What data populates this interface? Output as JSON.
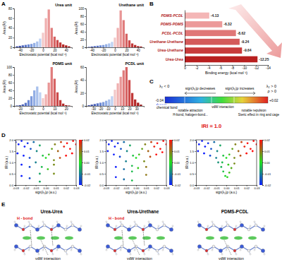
{
  "panel_labels": [
    "A",
    "B",
    "C",
    "D",
    "E"
  ],
  "chart_data": [
    {
      "type": "bar",
      "title": "Urea unit",
      "x_label": "Electrostatic potential (kcal mol⁻¹)",
      "y_label": "Area (Å²)",
      "x": [
        -45,
        -40,
        -35,
        -30,
        -25,
        -20,
        -15,
        -10,
        -5,
        0,
        5,
        10,
        15,
        20,
        25,
        30,
        35,
        40,
        45
      ],
      "values": [
        2,
        3,
        4,
        5,
        6,
        7,
        9,
        12,
        18,
        30,
        60,
        78,
        40,
        22,
        15,
        10,
        6,
        4,
        2
      ],
      "colors": [
        "#2f3f9e",
        "#3c50ad",
        "#4a62bb",
        "#5a75c8",
        "#6b88d3",
        "#7e9bdc",
        "#92aee5",
        "#a8c0ec",
        "#bfd2f3",
        "#f3c9c9",
        "#f0b0b0",
        "#e99696",
        "#e07c7c",
        "#d66363",
        "#cc4b4b",
        "#c13838",
        "#b52828",
        "#a71c1c",
        "#981212"
      ],
      "xlim": [
        -50,
        50
      ],
      "xticks": [
        -40,
        -20,
        0,
        20,
        40
      ],
      "ylim": [
        0,
        80
      ],
      "yticks": [
        0,
        20,
        40,
        60,
        80
      ]
    },
    {
      "type": "bar",
      "title": "Urethane unit",
      "x_label": "Electrostatic potential (kcal mol⁻¹)",
      "y_label": "Area (Å²)",
      "x": [
        -45,
        -40,
        -35,
        -30,
        -25,
        -20,
        -15,
        -10,
        -5,
        0,
        5,
        10,
        15,
        20,
        25,
        30,
        35,
        40,
        45
      ],
      "values": [
        1,
        2,
        3,
        4,
        5,
        6,
        8,
        10,
        14,
        25,
        50,
        95,
        70,
        35,
        18,
        10,
        6,
        3,
        2
      ],
      "colors": [
        "#2f3f9e",
        "#3c50ad",
        "#4a62bb",
        "#5a75c8",
        "#6b88d3",
        "#7e9bdc",
        "#92aee5",
        "#a8c0ec",
        "#bfd2f3",
        "#f3c9c9",
        "#f0b0b0",
        "#e99696",
        "#e07c7c",
        "#d66363",
        "#cc4b4b",
        "#c13838",
        "#b52828",
        "#a71c1c",
        "#981212"
      ],
      "xlim": [
        -50,
        50
      ],
      "xticks": [
        -40,
        -20,
        0,
        20,
        40
      ],
      "ylim": [
        0,
        100
      ],
      "yticks": [
        0,
        20,
        40,
        60,
        80,
        100
      ]
    },
    {
      "type": "bar",
      "title": "PDMS unit",
      "x_label": "Electrostatic potential (kcal mol⁻¹)",
      "y_label": "Area (Å²)",
      "x": [
        -22.5,
        -20,
        -17.5,
        -15,
        -12.5,
        -10,
        -7.5,
        -5,
        -2.5,
        0,
        2.5,
        5,
        7.5,
        10,
        12.5,
        15,
        17.5,
        20,
        22.5
      ],
      "values": [
        1,
        2,
        4,
        8,
        15,
        25,
        40,
        50,
        35,
        20,
        30,
        60,
        100,
        70,
        35,
        15,
        6,
        2,
        1
      ],
      "colors": [
        "#2f3f9e",
        "#3c50ad",
        "#4a62bb",
        "#5a75c8",
        "#6b88d3",
        "#7e9bdc",
        "#92aee5",
        "#a8c0ec",
        "#bfd2f3",
        "#f3c9c9",
        "#f0b0b0",
        "#e99696",
        "#e07c7c",
        "#d66363",
        "#cc4b4b",
        "#c13838",
        "#b52828",
        "#a71c1c",
        "#981212"
      ],
      "xlim": [
        -25,
        25
      ],
      "xticks": [
        -20,
        -10,
        0,
        10,
        20
      ],
      "ylim": [
        0,
        100
      ],
      "yticks": [
        0,
        20,
        40,
        60,
        80,
        100
      ]
    },
    {
      "type": "bar",
      "title": "PCDL unit",
      "x_label": "Electrostatic potential (kcal mol⁻¹)",
      "y_label": "Area (Å²)",
      "x": [
        -36,
        -32,
        -28,
        -24,
        -20,
        -16,
        -12,
        -8,
        -4,
        0,
        4,
        8,
        12,
        16,
        20,
        24,
        28,
        32,
        36
      ],
      "values": [
        1,
        2,
        3,
        4,
        5,
        6,
        8,
        10,
        15,
        25,
        35,
        45,
        55,
        60,
        40,
        20,
        10,
        5,
        2
      ],
      "colors": [
        "#2f3f9e",
        "#3c50ad",
        "#4a62bb",
        "#5a75c8",
        "#6b88d3",
        "#7e9bdc",
        "#92aee5",
        "#a8c0ec",
        "#bfd2f3",
        "#f3c9c9",
        "#f0b0b0",
        "#e99696",
        "#e07c7c",
        "#d66363",
        "#cc4b4b",
        "#c13838",
        "#b52828",
        "#a71c1c",
        "#981212"
      ],
      "xlim": [
        -40,
        40
      ],
      "xticks": [
        -30,
        -20,
        -10,
        0,
        10,
        20,
        30
      ],
      "ylim": [
        0,
        60
      ],
      "yticks": [
        0,
        20,
        40,
        60
      ]
    },
    {
      "type": "bar",
      "orientation": "horizontal",
      "x_label": "Binding energy (kcal mol⁻¹)",
      "categories": [
        "PDMS-PCDL",
        "PDMS-PDMS",
        "PCDL-PCDL",
        "Urethane-Urethane",
        "Urea-Urethane",
        "Urea-Urea"
      ],
      "values": [
        -4.13,
        -6.32,
        -8.62,
        -9.24,
        -9.64,
        -12.25
      ],
      "colors": [
        "#f4b6b6",
        "#ec9a9a",
        "#e07777",
        "#d45a5a",
        "#c83b3b",
        "#b81f1f"
      ],
      "xlim": [
        0,
        -14
      ],
      "xticks": [
        0,
        -2,
        -4,
        -6,
        -8,
        -10,
        -12,
        -14
      ],
      "data_labels": true
    },
    {
      "type": "scatter",
      "x_label": "sign(λ₂)ρ (a.u.)",
      "y_label": "IRI (a.u.)",
      "x": [
        -0.03,
        -0.027,
        -0.024,
        -0.021,
        -0.018,
        -0.015,
        -0.012,
        -0.009,
        -0.006,
        -0.003,
        0,
        0.003,
        0.006,
        0.009,
        0.012,
        0.015,
        0.018,
        0.021,
        0.024,
        0.027,
        0.03,
        -0.028,
        -0.022,
        -0.016,
        -0.01,
        -0.004,
        0.002,
        0.008,
        0.014,
        0.02,
        0.026,
        -0.024,
        -0.024,
        -0.016,
        -0.016,
        -0.006,
        -0.006,
        0.008,
        0.008
      ],
      "values": [
        1.9,
        1.8,
        1.95,
        1.7,
        1.85,
        1.6,
        1.9,
        1.5,
        1.75,
        1.3,
        1.2,
        1.35,
        1.6,
        1.8,
        1.5,
        1.9,
        1.7,
        1.85,
        1.6,
        1.95,
        1.8,
        1.4,
        1.3,
        1.2,
        1.0,
        0.8,
        0.7,
        1.1,
        1.2,
        1.3,
        1.4,
        0.9,
        0.4,
        0.8,
        0.3,
        0.5,
        0.15,
        0.9,
        0.5
      ],
      "xlim": [
        -0.03,
        0.03
      ],
      "xticks": [
        -0.03,
        -0.02,
        -0.01,
        {
          "value": 0,
          "label": "0.00"
        },
        0.01,
        0.02,
        0.03
      ],
      "ylim": [
        0,
        2
      ],
      "yticks": [
        {
          "value": 0,
          "label": "0.0"
        },
        0.5,
        {
          "value": 1,
          "label": "1.0"
        },
        1.5,
        {
          "value": 2,
          "label": "2.0"
        }
      ],
      "colorbar": {
        "range": [
          -0.02,
          0.02
        ],
        "ticks": [
          0.02,
          0.01,
          {
            "value": 0,
            "label": "0.00"
          },
          -0.01,
          -0.02
        ]
      }
    },
    {
      "type": "scatter",
      "x_label": "sign(λ₂)ρ (a.u.)",
      "y_label": "IRI (a.u.)",
      "x": [
        -0.03,
        -0.027,
        -0.024,
        -0.021,
        -0.018,
        -0.015,
        -0.012,
        -0.009,
        -0.006,
        -0.003,
        0,
        0.003,
        0.006,
        0.009,
        0.012,
        0.015,
        0.018,
        0.021,
        0.024,
        0.027,
        0.03,
        -0.028,
        -0.022,
        -0.016,
        -0.01,
        -0.004,
        0.002,
        0.008,
        0.014,
        0.02,
        0.026,
        -0.02,
        -0.02,
        -0.012,
        -0.012,
        -0.004,
        -0.004,
        0.01,
        0.01
      ],
      "values": [
        1.9,
        1.8,
        1.95,
        1.7,
        1.85,
        1.6,
        1.9,
        1.5,
        1.75,
        1.3,
        1.2,
        1.35,
        1.6,
        1.8,
        1.5,
        1.9,
        1.7,
        1.85,
        1.6,
        1.95,
        1.8,
        1.5,
        1.35,
        1.25,
        1.05,
        0.85,
        0.75,
        1.05,
        1.25,
        1.35,
        1.45,
        0.8,
        0.35,
        0.7,
        0.25,
        0.6,
        0.2,
        0.8,
        0.45
      ],
      "xlim": [
        -0.03,
        0.03
      ],
      "xticks": [
        -0.03,
        -0.02,
        -0.01,
        {
          "value": 0,
          "label": "0.00"
        },
        0.01,
        0.02,
        0.03
      ],
      "ylim": [
        0,
        2
      ],
      "yticks": [
        {
          "value": 0,
          "label": "0.0"
        },
        0.5,
        {
          "value": 1,
          "label": "1.0"
        },
        1.5,
        {
          "value": 2,
          "label": "2.0"
        }
      ],
      "colorbar": {
        "range": [
          -0.02,
          0.02
        ],
        "ticks": [
          0.02,
          0.01,
          {
            "value": 0,
            "label": "0.00"
          },
          -0.01,
          -0.02
        ]
      }
    },
    {
      "type": "scatter",
      "x_label": "sign(λ₂)ρ (a.u.)",
      "y_label": "IRI (a.u.)",
      "x": [
        -0.03,
        -0.027,
        -0.024,
        -0.021,
        -0.018,
        -0.015,
        -0.012,
        -0.009,
        -0.006,
        -0.003,
        0,
        0.003,
        0.006,
        0.009,
        0.012,
        0.015,
        0.018,
        0.021,
        0.024,
        0.027,
        0.03,
        -0.028,
        -0.022,
        -0.016,
        -0.01,
        -0.004,
        0.002,
        0.008,
        0.014,
        0.02,
        0.026,
        -0.008,
        -0.005,
        -0.003,
        -0.001,
        0.001,
        0.003,
        0.005,
        0.008
      ],
      "values": [
        1.9,
        1.8,
        1.95,
        1.7,
        1.85,
        1.6,
        1.9,
        1.5,
        1.75,
        1.3,
        1.2,
        1.35,
        1.6,
        1.8,
        1.5,
        1.9,
        1.7,
        1.85,
        1.6,
        1.95,
        1.8,
        1.5,
        1.4,
        1.3,
        1.2,
        1.0,
        0.9,
        1.2,
        1.3,
        1.4,
        1.5,
        1.0,
        0.8,
        0.6,
        0.4,
        0.35,
        0.55,
        0.75,
        0.95
      ],
      "xlim": [
        -0.03,
        0.03
      ],
      "xticks": [
        -0.03,
        -0.02,
        -0.01,
        {
          "value": 0,
          "label": "0.00"
        },
        0.01,
        0.02,
        0.03
      ],
      "ylim": [
        0,
        2
      ],
      "yticks": [
        {
          "value": 0,
          "label": "0.0"
        },
        0.5,
        {
          "value": 1,
          "label": "1.0"
        },
        1.5,
        {
          "value": 2,
          "label": "2.0"
        }
      ],
      "colorbar": {
        "range": [
          -0.02,
          0.02
        ],
        "ticks": [
          0.02,
          0.01,
          {
            "value": 0,
            "label": "0.00"
          },
          -0.01,
          -0.02
        ]
      }
    }
  ],
  "diagram": {
    "lambda_neg": "λ₂ < 0",
    "lambda_pos": "λ₂ > 0",
    "rho": "ρ > 0",
    "decreases": "sign(λ₂)ρ decreases",
    "increases": "sign(λ₂)ρ increases",
    "left_value": "-0.04",
    "right_value": "+0.02",
    "chemical_bond": "chemical bond",
    "attraction": [
      "notable attraction",
      "H-bond, halogen-bond..."
    ],
    "vdw": "vdW interaction",
    "repulsion": [
      "notable repulsion",
      "Steric effect in ring and cage"
    ]
  },
  "iri_label": "IRI = 1.0",
  "molecules": [
    {
      "title": "Urea-Urea",
      "h_bond": "H - bond",
      "vdw": "vdW interaction"
    },
    {
      "title": "Urea-Urethane",
      "h_bond": "H - bond",
      "vdw": "vdW interaction"
    },
    {
      "title": "PDMS-PCDL",
      "vdw": "vdW interaction"
    }
  ]
}
